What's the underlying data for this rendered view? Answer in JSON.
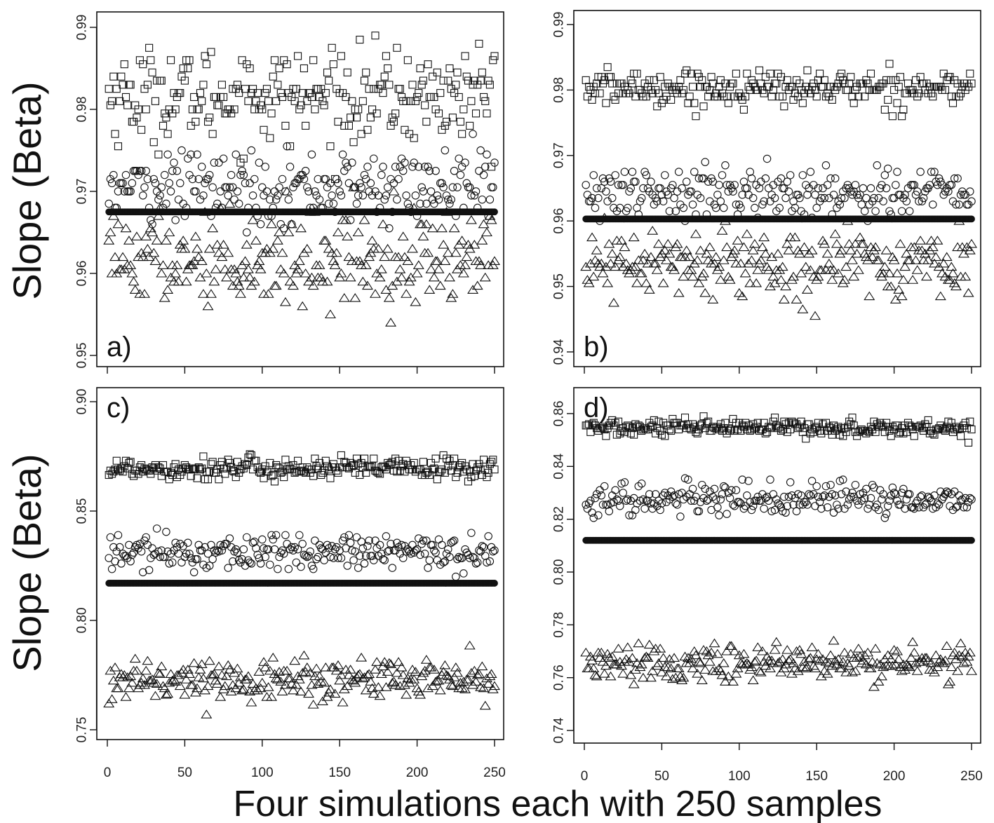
{
  "figure": {
    "ylabel": "Slope (Beta)",
    "xlabel": "Four simulations each with 250 samples"
  },
  "chart_data": [
    {
      "type": "scatter",
      "panel": "a)",
      "xlim": [
        0,
        250
      ],
      "ylim": [
        0.95,
        0.99
      ],
      "x_ticks": [
        0,
        50,
        100,
        150,
        200,
        250
      ],
      "y_ticks": [
        0.95,
        0.96,
        0.97,
        0.98,
        0.99
      ],
      "y_tick_labels": [
        "0.95",
        "0.96",
        "0.97",
        "0.98",
        "0.99"
      ],
      "n": 250,
      "series": [
        {
          "marker": "square",
          "center": 0.9817,
          "spread": 0.0038
        },
        {
          "marker": "circle",
          "center": 0.9705,
          "spread": 0.0028
        },
        {
          "marker": "filled-circle",
          "center": 0.9675,
          "spread": 0.0
        },
        {
          "marker": "triangle",
          "center": 0.962,
          "spread": 0.0038
        }
      ]
    },
    {
      "type": "scatter",
      "panel": "b)",
      "xlim": [
        0,
        250
      ],
      "ylim": [
        0.94,
        0.99
      ],
      "x_ticks": [
        0,
        50,
        100,
        150,
        200,
        250
      ],
      "y_ticks": [
        0.94,
        0.95,
        0.96,
        0.97,
        0.98,
        0.99
      ],
      "y_tick_labels": [
        "0.94",
        "0.95",
        "0.96",
        "0.97",
        "0.98",
        "0.99"
      ],
      "n": 250,
      "series": [
        {
          "marker": "square",
          "center": 0.9803,
          "spread": 0.0018
        },
        {
          "marker": "circle",
          "center": 0.9643,
          "spread": 0.0026
        },
        {
          "marker": "filled-circle",
          "center": 0.9603,
          "spread": 0.0
        },
        {
          "marker": "triangle",
          "center": 0.9535,
          "spread": 0.0035
        }
      ]
    },
    {
      "type": "scatter",
      "panel": "c)",
      "xlim": [
        0,
        250
      ],
      "ylim": [
        0.75,
        0.9
      ],
      "x_ticks": [
        0,
        50,
        100,
        150,
        200,
        250
      ],
      "y_ticks": [
        0.75,
        0.8,
        0.85,
        0.9
      ],
      "y_tick_labels": [
        "0.75",
        "0.80",
        "0.85",
        "0.90"
      ],
      "n": 250,
      "series": [
        {
          "marker": "square",
          "center": 0.8695,
          "spread": 0.0035
        },
        {
          "marker": "circle",
          "center": 0.831,
          "spread": 0.0055
        },
        {
          "marker": "filled-circle",
          "center": 0.817,
          "spread": 0.0
        },
        {
          "marker": "triangle",
          "center": 0.773,
          "spread": 0.0065
        }
      ]
    },
    {
      "type": "scatter",
      "panel": "d)",
      "xlim": [
        0,
        250
      ],
      "ylim": [
        0.74,
        0.86
      ],
      "x_ticks": [
        0,
        50,
        100,
        150,
        200,
        250
      ],
      "y_ticks": [
        0.74,
        0.76,
        0.78,
        0.8,
        0.82,
        0.84,
        0.86
      ],
      "y_tick_labels": [
        "0.74",
        "0.76",
        "0.78",
        "0.80",
        "0.82",
        "0.84",
        "0.86"
      ],
      "n": 250,
      "series": [
        {
          "marker": "square",
          "center": 0.8545,
          "spread": 0.0022
        },
        {
          "marker": "circle",
          "center": 0.8275,
          "spread": 0.004
        },
        {
          "marker": "filled-circle",
          "center": 0.812,
          "spread": 0.0
        },
        {
          "marker": "triangle",
          "center": 0.7655,
          "spread": 0.0048
        }
      ]
    }
  ]
}
